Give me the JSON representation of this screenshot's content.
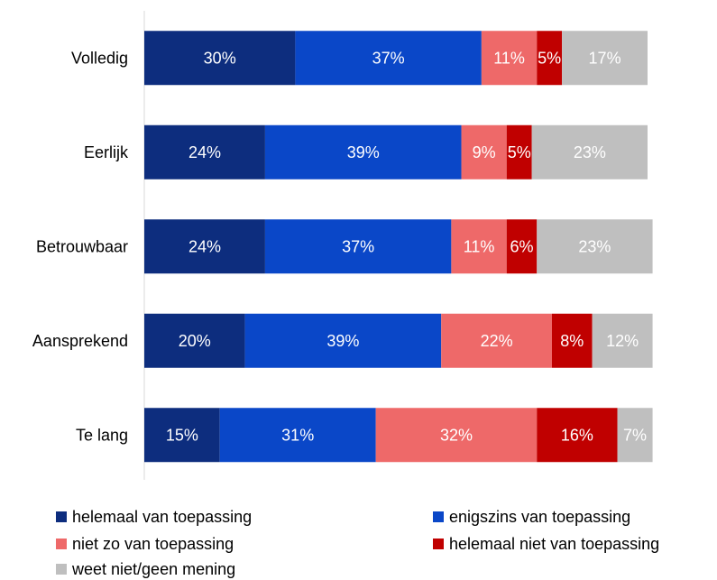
{
  "chart_data": {
    "type": "bar",
    "orientation": "horizontal",
    "stacked": true,
    "categories": [
      "Volledig",
      "Eerlijk",
      "Betrouwbaar",
      "Aansprekend",
      "Te lang"
    ],
    "series": [
      {
        "name": "helemaal van toepassing",
        "color": "#0d2d7e",
        "values": [
          30,
          24,
          24,
          20,
          15
        ],
        "labels": [
          "30%",
          "24%",
          "24%",
          "20%",
          "15%"
        ]
      },
      {
        "name": "enigszins van toepassing",
        "color": "#0a47c8",
        "values": [
          37,
          39,
          37,
          39,
          31
        ],
        "labels": [
          "37%",
          "39%",
          "37%",
          "39%",
          "31%"
        ]
      },
      {
        "name": "niet zo van toepassing",
        "color": "#ee6969",
        "values": [
          11,
          9,
          11,
          22,
          32
        ],
        "labels": [
          "11%",
          "9%",
          "11%",
          "22%",
          "32%"
        ]
      },
      {
        "name": "helemaal niet van toepassing",
        "color": "#c00000",
        "values": [
          5,
          5,
          6,
          8,
          16
        ],
        "labels": [
          "5%",
          "5%",
          "6%",
          "8%",
          "16%"
        ]
      },
      {
        "name": "weet niet/geen mening",
        "color": "#bfbfbf",
        "values": [
          17,
          23,
          23,
          12,
          7
        ],
        "labels": [
          "17%",
          "23%",
          "23%",
          "12%",
          "7%"
        ]
      }
    ],
    "xlim": [
      0,
      100
    ],
    "grid": false,
    "legend_position": "bottom"
  }
}
